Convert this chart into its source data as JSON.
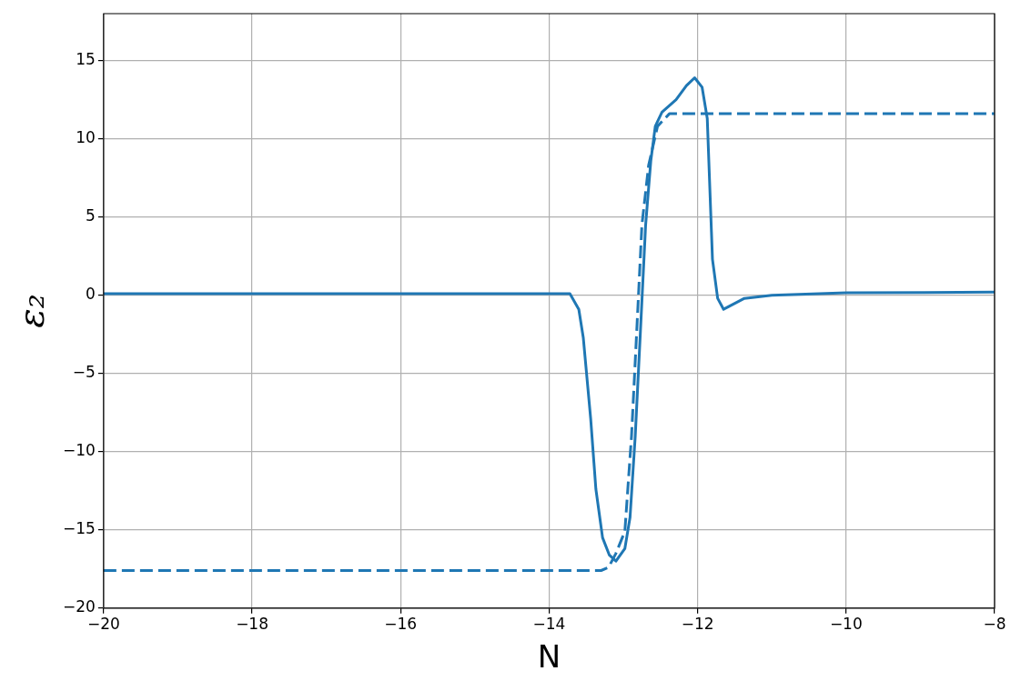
{
  "chart_data": {
    "type": "line",
    "xlabel": "N",
    "ylabel": "ε₂",
    "xlim": [
      -20,
      -8
    ],
    "xticks": [
      -20,
      -18,
      -16,
      -14,
      -12,
      -10,
      -8
    ],
    "ylim": [
      -20,
      18
    ],
    "yticks": [
      -20,
      -15,
      -10,
      -5,
      0,
      5,
      10,
      15
    ],
    "grid": true,
    "marker": "none",
    "series": [
      {
        "color": "#1f77b4",
        "line_style": "solid",
        "x": [
          -20,
          -16,
          -14,
          -13.72,
          -13.6,
          -13.54,
          -13.44,
          -13.37,
          -13.28,
          -13.19,
          -13.1,
          -12.98,
          -12.91,
          -12.84,
          -12.77,
          -12.7,
          -12.63,
          -12.57,
          -12.48,
          -12.29,
          -12.15,
          -12.04,
          -11.94,
          -11.87,
          -11.8,
          -11.73,
          -11.65,
          -11.37,
          -11,
          -10,
          -8
        ],
        "values": [
          0.1,
          0.1,
          0.1,
          0.1,
          -0.9,
          -2.7,
          -7.9,
          -12.4,
          -15.5,
          -16.6,
          -17,
          -16.2,
          -14.2,
          -9,
          -2.3,
          4.5,
          8.6,
          10.8,
          11.7,
          12.5,
          13.4,
          13.9,
          13.3,
          11.3,
          2.3,
          -0.2,
          -0.9,
          -0.2,
          0,
          0.15,
          0.2
        ]
      },
      {
        "color": "#1f77b4",
        "line_style": "dashed",
        "x": [
          -20,
          -13.3,
          -13.2,
          -13.1,
          -12.98,
          -12.89,
          -12.82,
          -12.75,
          -12.66,
          -12.54,
          -12.38,
          -8
        ],
        "values": [
          -17.6,
          -17.6,
          -17.4,
          -16.5,
          -15.1,
          -9,
          -2.3,
          4.5,
          8.3,
          10.8,
          11.6,
          11.6
        ]
      }
    ]
  }
}
